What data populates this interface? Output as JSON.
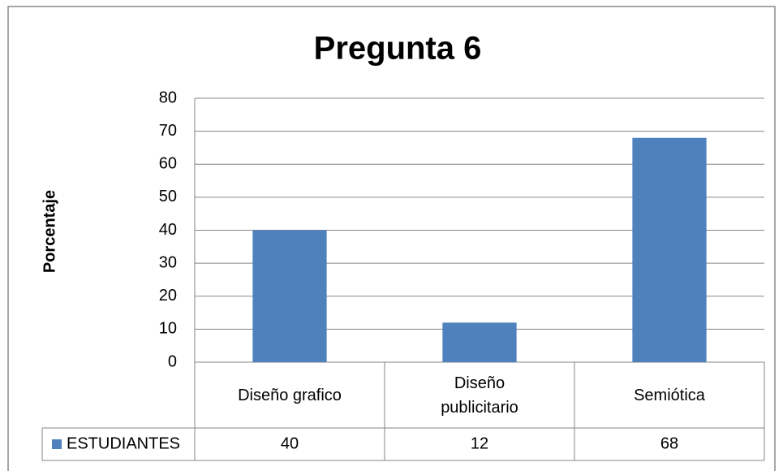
{
  "chart_data": {
    "type": "bar",
    "title": "Pregunta 6",
    "ylabel": "Porcentaje",
    "categories": [
      "Diseño grafico",
      "Diseño publicitario",
      "Semiótica"
    ],
    "series": [
      {
        "name": "ESTUDIANTES",
        "color": "#4f81bd",
        "values": [
          40,
          12,
          68
        ]
      }
    ],
    "ylim": [
      0,
      80
    ],
    "yticks": [
      0,
      10,
      20,
      30,
      40,
      50,
      60,
      70,
      80
    ],
    "grid": true,
    "data_table": true
  }
}
